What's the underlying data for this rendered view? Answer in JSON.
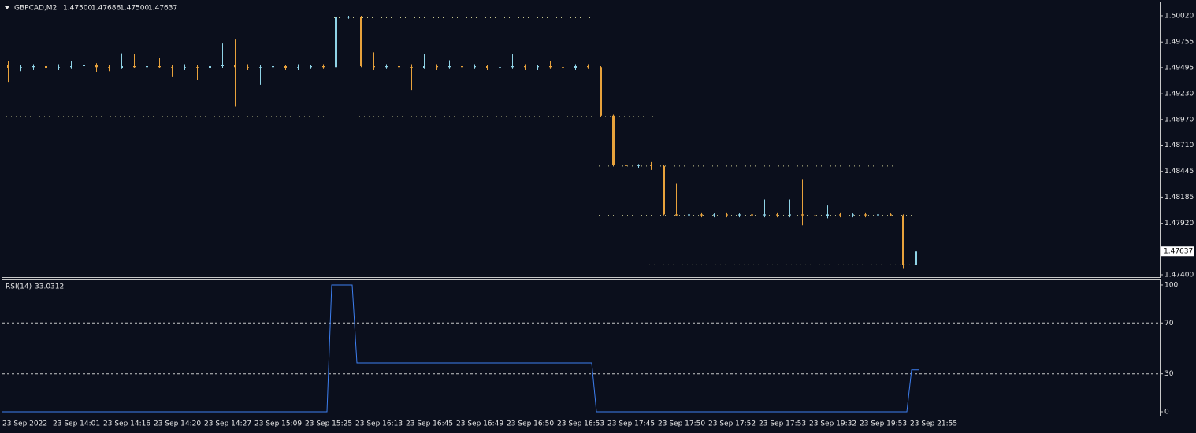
{
  "chart_data": [
    {
      "type": "candlestick",
      "title": "GBPCAD,M2",
      "ohlc_labels": [
        "1.47500",
        "1.47686",
        "1.47500",
        "1.47637"
      ],
      "up_color": "#8fd3e6",
      "down_color": "#e8a23c",
      "level_color": "#c8c890",
      "ylim": [
        1.47376,
        1.50155
      ],
      "yticks": [
        {
          "value": 1.5002,
          "label": "1.50020"
        },
        {
          "value": 1.49755,
          "label": "1.49755"
        },
        {
          "value": 1.49495,
          "label": "1.49495"
        },
        {
          "value": 1.4923,
          "label": "1.49230"
        },
        {
          "value": 1.4897,
          "label": "1.48970"
        },
        {
          "value": 1.4871,
          "label": "1.48710"
        },
        {
          "value": 1.48445,
          "label": "1.48445"
        },
        {
          "value": 1.48185,
          "label": "1.48185"
        },
        {
          "value": 1.4792,
          "label": "1.47920"
        },
        {
          "value": 1.474,
          "label": "1.47400"
        }
      ],
      "levels": [
        {
          "value": 1.5,
          "from": 26,
          "to": 46
        },
        {
          "value": 1.49,
          "from": 0,
          "to": 25
        },
        {
          "value": 1.49,
          "from": 28,
          "to": 51
        },
        {
          "value": 1.485,
          "from": 47,
          "to": 70
        },
        {
          "value": 1.48,
          "from": 47,
          "to": 72
        },
        {
          "value": 1.475,
          "from": 51,
          "to": 72
        }
      ],
      "categories": [
        "23 Sep 2022",
        null,
        null,
        null,
        "23 Sep 14:01",
        null,
        null,
        null,
        "23 Sep 14:16",
        null,
        null,
        null,
        "23 Sep 14:20",
        null,
        null,
        null,
        "23 Sep 14:27",
        null,
        null,
        null,
        "23 Sep 15:09",
        null,
        null,
        null,
        "23 Sep 15:25",
        null,
        null,
        null,
        "23 Sep 16:13",
        null,
        null,
        null,
        "23 Sep 16:45",
        null,
        null,
        null,
        "23 Sep 16:49",
        null,
        null,
        null,
        "23 Sep 16:50",
        null,
        null,
        null,
        "23 Sep 16:53",
        null,
        null,
        null,
        "23 Sep 17:45",
        null,
        null,
        null,
        "23 Sep 17:50",
        null,
        null,
        null,
        "23 Sep 17:52",
        null,
        null,
        null,
        "23 Sep 17:53",
        null,
        null,
        null,
        "23 Sep 19:32",
        null,
        null,
        null,
        "23 Sep 19:53",
        null,
        null,
        null,
        "23 Sep 21:55"
      ],
      "open": [
        1.4952,
        1.4949,
        1.495,
        1.4951,
        1.4949,
        1.495,
        1.4951,
        1.4952,
        1.495,
        1.4949,
        1.4951,
        1.495,
        1.4951,
        1.495,
        1.4949,
        1.495,
        1.4949,
        1.4951,
        1.4952,
        1.495,
        1.4949,
        1.495,
        1.4951,
        1.4949,
        1.495,
        1.4951,
        1.495,
        1.5001,
        1.5001,
        1.4951,
        1.495,
        1.4951,
        1.495,
        1.4949,
        1.4951,
        1.495,
        1.4951,
        1.495,
        1.4951,
        1.4949,
        1.495,
        1.4951,
        1.495,
        1.4951,
        1.495,
        1.4949,
        1.4951,
        1.495,
        1.4901,
        1.4851,
        1.485,
        1.4851,
        1.485,
        1.4801,
        1.48,
        1.4801,
        1.48,
        1.4801,
        1.48,
        1.4801,
        1.48,
        1.4801,
        1.48,
        1.4801,
        1.48,
        1.4799,
        1.4801,
        1.48,
        1.4801,
        1.48,
        1.4801,
        1.48,
        1.475
      ],
      "high": [
        1.4956,
        1.4952,
        1.4953,
        1.4952,
        1.4953,
        1.4956,
        1.498,
        1.4954,
        1.4952,
        1.4964,
        1.4963,
        1.4953,
        1.4959,
        1.4952,
        1.4953,
        1.4952,
        1.4953,
        1.4974,
        1.4978,
        1.4953,
        1.4952,
        1.4953,
        1.4952,
        1.4953,
        1.4952,
        1.4953,
        1.5001,
        1.5002,
        1.5002,
        1.4965,
        1.4953,
        1.4952,
        1.4953,
        1.4963,
        1.4953,
        1.4957,
        1.4952,
        1.4953,
        1.4952,
        1.4953,
        1.4963,
        1.4953,
        1.4952,
        1.4956,
        1.4953,
        1.4953,
        1.4953,
        1.4951,
        1.4902,
        1.4857,
        1.4852,
        1.4854,
        1.4851,
        1.4832,
        1.4802,
        1.4803,
        1.4802,
        1.4803,
        1.4802,
        1.4803,
        1.4816,
        1.4803,
        1.4816,
        1.4836,
        1.4808,
        1.481,
        1.4803,
        1.4802,
        1.4803,
        1.4802,
        1.4802,
        1.4801,
        1.47686
      ],
      "low": [
        1.4935,
        1.4946,
        1.4947,
        1.4929,
        1.4947,
        1.4948,
        1.4949,
        1.4945,
        1.4946,
        1.4948,
        1.4949,
        1.4947,
        1.4949,
        1.494,
        1.4947,
        1.4937,
        1.4947,
        1.4949,
        1.491,
        1.4947,
        1.4932,
        1.4948,
        1.4947,
        1.4947,
        1.4948,
        1.4948,
        1.495,
        1.4999,
        1.495,
        1.4947,
        1.4948,
        1.4947,
        1.4927,
        1.4948,
        1.4947,
        1.4948,
        1.4946,
        1.4948,
        1.4947,
        1.4942,
        1.4948,
        1.4947,
        1.4947,
        1.4948,
        1.4941,
        1.4947,
        1.4948,
        1.49,
        1.485,
        1.4824,
        1.4848,
        1.4846,
        1.48,
        1.4799,
        1.4798,
        1.4798,
        1.4798,
        1.4798,
        1.4798,
        1.4798,
        1.4798,
        1.4798,
        1.4798,
        1.479,
        1.4757,
        1.4797,
        1.4798,
        1.4798,
        1.4798,
        1.4798,
        1.4799,
        1.4746,
        1.475
      ],
      "close": [
        1.4949,
        1.495,
        1.4951,
        1.4949,
        1.495,
        1.4951,
        1.4952,
        1.495,
        1.4949,
        1.4951,
        1.495,
        1.4951,
        1.495,
        1.4949,
        1.495,
        1.4949,
        1.4951,
        1.4952,
        1.495,
        1.4949,
        1.495,
        1.4951,
        1.4949,
        1.495,
        1.4951,
        1.495,
        1.5001,
        1.5001,
        1.4951,
        1.495,
        1.4951,
        1.495,
        1.4949,
        1.4951,
        1.495,
        1.4951,
        1.495,
        1.4951,
        1.4949,
        1.495,
        1.4951,
        1.495,
        1.4951,
        1.495,
        1.4949,
        1.4951,
        1.495,
        1.4901,
        1.4851,
        1.485,
        1.4851,
        1.485,
        1.4801,
        1.48,
        1.4801,
        1.48,
        1.4801,
        1.48,
        1.4801,
        1.48,
        1.4801,
        1.48,
        1.4801,
        1.48,
        1.4799,
        1.4801,
        1.48,
        1.4801,
        1.48,
        1.4801,
        1.48,
        1.475,
        1.47637
      ]
    },
    {
      "type": "line",
      "title": "RSI(14)",
      "color": "#3d7ff0",
      "ylim": [
        -3.1,
        103.7
      ],
      "yticks": [
        0,
        30,
        70,
        100
      ],
      "levels": [
        30,
        70
      ],
      "values": [
        0,
        0,
        0,
        0,
        0,
        0,
        0,
        0,
        0,
        0,
        0,
        0,
        0,
        0,
        0,
        0,
        0,
        0,
        0,
        0,
        0,
        0,
        0,
        0,
        0,
        0,
        100,
        100,
        38.5,
        38.5,
        38.5,
        38.5,
        38.5,
        38.5,
        38.5,
        38.5,
        38.5,
        38.5,
        38.5,
        38.5,
        38.5,
        38.5,
        38.5,
        38.5,
        38.5,
        38.5,
        38.5,
        0,
        0,
        0,
        0,
        0,
        0,
        0,
        0,
        0,
        0,
        0,
        0,
        0,
        0,
        0,
        0,
        0,
        0,
        0,
        0,
        0,
        0,
        0,
        0,
        0,
        33.0312
      ]
    }
  ]
}
